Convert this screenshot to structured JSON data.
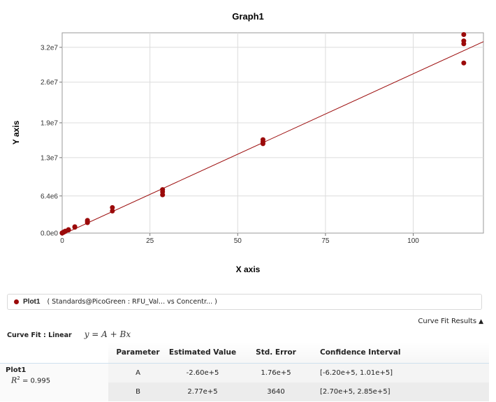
{
  "chart_data": {
    "type": "scatter",
    "title": "Graph1",
    "xlabel": "X axis",
    "ylabel": "Y axis",
    "xlim": [
      0,
      120
    ],
    "ylim": [
      0,
      34500000
    ],
    "x_ticks": [
      0,
      25,
      50,
      75,
      100
    ],
    "x_tick_labels": [
      "0",
      "25",
      "50",
      "75",
      "100"
    ],
    "y_ticks": [
      0,
      6400000,
      13000000,
      19000000,
      26000000,
      32000000
    ],
    "y_tick_labels": [
      "0.0e0",
      "6.4e6",
      "1.3e7",
      "1.9e7",
      "2.6e7",
      "3.2e7"
    ],
    "grid": true,
    "series": [
      {
        "name": "Plot1",
        "color": "#9b0a0a",
        "points": [
          [
            0.0,
            0
          ],
          [
            0.0,
            50000
          ],
          [
            0.45,
            200000
          ],
          [
            0.45,
            150000
          ],
          [
            0.9,
            350000
          ],
          [
            0.9,
            300000
          ],
          [
            1.8,
            520000
          ],
          [
            1.8,
            600000
          ],
          [
            3.6,
            1000000
          ],
          [
            3.6,
            1100000
          ],
          [
            7.2,
            1800000
          ],
          [
            7.2,
            2000000
          ],
          [
            7.2,
            2200000
          ],
          [
            14.3,
            3800000
          ],
          [
            14.3,
            4400000
          ],
          [
            28.6,
            6600000
          ],
          [
            28.6,
            7100000
          ],
          [
            28.6,
            7500000
          ],
          [
            57.2,
            15400000
          ],
          [
            57.2,
            15700000
          ],
          [
            57.2,
            16100000
          ],
          [
            114.4,
            29300000
          ],
          [
            114.4,
            32600000
          ],
          [
            114.4,
            33100000
          ],
          [
            114.4,
            34200000
          ]
        ]
      }
    ],
    "fit": {
      "type": "linear",
      "A": -260000,
      "B": 277000,
      "x_range": [
        0,
        120
      ],
      "color": "#9b0a0a"
    }
  },
  "legend": {
    "name": "Plot1",
    "text": "( Standards@PicoGreen : RFU_Val...   vs  Concentr...  )"
  },
  "curve_fit": {
    "toggle_label": "Curve Fit Results",
    "label": "Curve Fit : Linear",
    "equation": "y = A + Bx",
    "columns": [
      "Parameter",
      "Estimated Value",
      "Std. Error",
      "Confidence Interval"
    ],
    "plot_name": "Plot1",
    "r2_value": "= 0.995",
    "rows": [
      {
        "param": "A",
        "value": "-2.60e+5",
        "error": "1.76e+5",
        "ci": "[-6.20e+5, 1.01e+5]"
      },
      {
        "param": "B",
        "value": "2.77e+5",
        "error": "3640",
        "ci": "[2.70e+5, 2.85e+5]"
      }
    ]
  }
}
